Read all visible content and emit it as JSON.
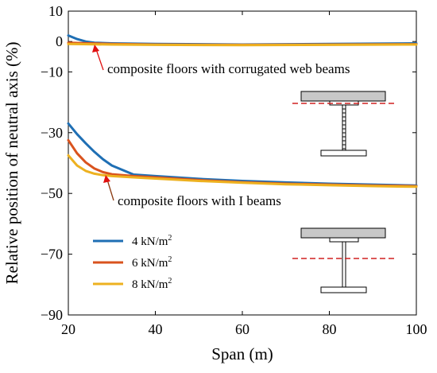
{
  "chart_data": {
    "type": "line",
    "xlabel": "Span (m)",
    "ylabel": "Relative position of neutral axis (%)",
    "xlim": [
      20,
      100
    ],
    "ylim": [
      -90,
      10
    ],
    "xticks": [
      20,
      40,
      60,
      80,
      100
    ],
    "yticks": [
      10,
      0,
      -10,
      -30,
      -50,
      -70,
      -90
    ],
    "grid": false,
    "legend_position": "lower-left",
    "colors": {
      "s4": "#1f6fb4",
      "s6": "#d9531e",
      "s8": "#edb120",
      "arrow": "#e01010",
      "flange": "#c8c8c8",
      "neutral_axis": "#d02020"
    },
    "legend": [
      {
        "base": "4 kN/m",
        "sup": "2",
        "key": "s4"
      },
      {
        "base": "6 kN/m",
        "sup": "2",
        "key": "s6"
      },
      {
        "base": "8 kN/m",
        "sup": "2",
        "key": "s8"
      }
    ],
    "annotations": [
      {
        "text": "composite floors with corrugated web beams",
        "points_to": [
          25,
          -1.5
        ]
      },
      {
        "text": "composite floors with I beams",
        "points_to": [
          28,
          -44.5
        ]
      }
    ],
    "series": [
      {
        "group": "corrugated web",
        "key": "s4",
        "x": [
          20,
          22,
          24,
          26,
          30,
          40,
          60,
          80,
          100
        ],
        "y": [
          2,
          0.8,
          0,
          -0.4,
          -0.6,
          -0.8,
          -1,
          -0.8,
          -0.6
        ]
      },
      {
        "group": "corrugated web",
        "key": "s6",
        "x": [
          20,
          25,
          30,
          40,
          60,
          80,
          100
        ],
        "y": [
          -0.4,
          -0.6,
          -0.8,
          -1,
          -1.1,
          -1,
          -0.9
        ]
      },
      {
        "group": "corrugated web",
        "key": "s8",
        "x": [
          20,
          25,
          30,
          40,
          60,
          80,
          100
        ],
        "y": [
          -0.8,
          -0.9,
          -1,
          -1.1,
          -1.2,
          -1.1,
          -1
        ]
      },
      {
        "group": "I beam",
        "key": "s4",
        "x": [
          20,
          22,
          24,
          26,
          28,
          30,
          35,
          40,
          50,
          60,
          70,
          80,
          90,
          100
        ],
        "y": [
          -27,
          -30.5,
          -33.5,
          -36.3,
          -38.8,
          -40.8,
          -43.8,
          -44.3,
          -45.2,
          -45.9,
          -46.4,
          -46.8,
          -47.1,
          -47.4
        ]
      },
      {
        "group": "I beam",
        "key": "s6",
        "x": [
          20,
          22,
          24,
          26,
          28,
          30,
          35,
          40,
          50,
          60,
          70,
          80,
          90,
          100
        ],
        "y": [
          -32.5,
          -36.8,
          -39.8,
          -41.8,
          -43,
          -43.7,
          -44.3,
          -44.7,
          -45.6,
          -46.3,
          -46.8,
          -47.1,
          -47.4,
          -47.6
        ]
      },
      {
        "group": "I beam",
        "key": "s8",
        "x": [
          20,
          22,
          24,
          26,
          28,
          30,
          35,
          40,
          50,
          60,
          70,
          80,
          90,
          100
        ],
        "y": [
          -37.5,
          -40.8,
          -42.6,
          -43.5,
          -44,
          -44.3,
          -44.7,
          -45.1,
          -45.9,
          -46.5,
          -47,
          -47.3,
          -47.6,
          -47.8
        ]
      }
    ]
  }
}
